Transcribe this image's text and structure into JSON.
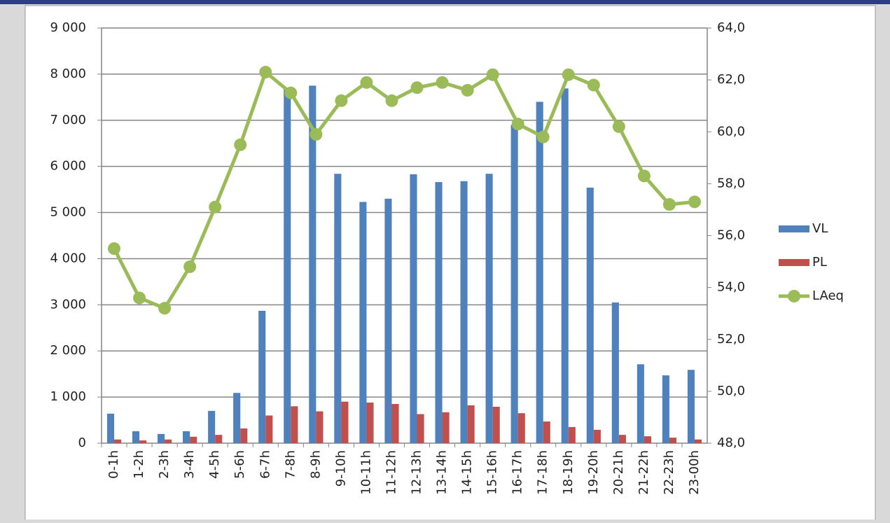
{
  "chart_data": {
    "type": "bar-line",
    "categories": [
      "0-1h",
      "1-2h",
      "2-3h",
      "3-4h",
      "4-5h",
      "5-6h",
      "6-7h",
      "7-8h",
      "8-9h",
      "9-10h",
      "10-11h",
      "11-12h",
      "12-13h",
      "13-14h",
      "14-15h",
      "15-16h",
      "16-17h",
      "17-18h",
      "18-19h",
      "19-20h",
      "20-21h",
      "21-22h",
      "22-23h",
      "23-00h"
    ],
    "series": [
      {
        "name": "VL",
        "type": "bar",
        "color": "#4f81bd",
        "values": [
          640,
          260,
          200,
          260,
          700,
          1090,
          2870,
          7700,
          7750,
          5840,
          5230,
          5300,
          5830,
          5660,
          5680,
          5840,
          6900,
          7400,
          7690,
          5540,
          3050,
          1710,
          1470,
          1590
        ]
      },
      {
        "name": "PL",
        "type": "bar",
        "color": "#c0504d",
        "values": [
          80,
          60,
          80,
          140,
          180,
          320,
          600,
          800,
          690,
          900,
          880,
          850,
          630,
          670,
          820,
          790,
          650,
          470,
          350,
          290,
          180,
          150,
          120,
          80
        ]
      },
      {
        "name": "LAeq",
        "type": "line",
        "axis": "y2",
        "color": "#9bbb59",
        "values": [
          55.5,
          53.6,
          53.2,
          54.8,
          57.1,
          59.5,
          62.3,
          61.5,
          59.9,
          61.2,
          61.9,
          61.2,
          61.7,
          61.9,
          61.6,
          62.2,
          60.3,
          59.8,
          62.2,
          61.8,
          60.2,
          58.3,
          57.2,
          57.3
        ]
      }
    ],
    "ylim": [
      0,
      9000
    ],
    "yticks": [
      0,
      {
        "value": 1000,
        "label": "1 000"
      },
      {
        "value": 2000,
        "label": "2 000"
      },
      {
        "value": 3000,
        "label": "3 000"
      },
      {
        "value": 4000,
        "label": "4 000"
      },
      {
        "value": 5000,
        "label": "5 000"
      },
      {
        "value": 6000,
        "label": "6 000"
      },
      {
        "value": 7000,
        "label": "7 000"
      },
      {
        "value": 8000,
        "label": "8 000"
      },
      {
        "value": 9000,
        "label": "9 000"
      }
    ],
    "y2lim": [
      48,
      64
    ],
    "y2ticks": [
      {
        "value": 48,
        "label": "48,0"
      },
      {
        "value": 50,
        "label": "50,0"
      },
      {
        "value": 52,
        "label": "52,0"
      },
      {
        "value": 54,
        "label": "54,0"
      },
      {
        "value": 56,
        "label": "56,0"
      },
      {
        "value": 58,
        "label": "58,0"
      },
      {
        "value": 60,
        "label": "60,0"
      },
      {
        "value": 62,
        "label": "62,0"
      },
      {
        "value": 64,
        "label": "64,0"
      }
    ],
    "grid": true,
    "legend": "right"
  }
}
